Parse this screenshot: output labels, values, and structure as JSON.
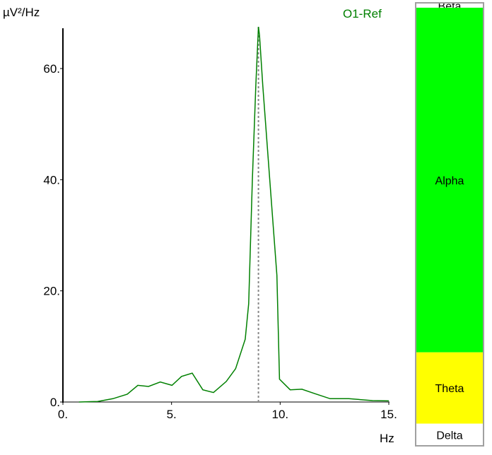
{
  "chart_data": {
    "type": "line",
    "title": "O1-Ref",
    "xlabel": "Hz",
    "ylabel": "µV²/Hz",
    "xlim": [
      0,
      15
    ],
    "ylim": [
      0,
      67.5
    ],
    "x_ticks": [
      "0.",
      "5.",
      "10.",
      "15."
    ],
    "x_tick_values": [
      0,
      5,
      10,
      15
    ],
    "y_ticks": [
      "0.",
      "20.",
      "40.",
      "60."
    ],
    "y_tick_values": [
      0,
      20,
      40,
      60
    ],
    "grid": false,
    "series": [
      {
        "name": "O1-Ref",
        "color": "#008000",
        "x": [
          0.74,
          1.6,
          2.3,
          2.96,
          3.45,
          3.94,
          4.48,
          5.02,
          5.46,
          5.95,
          6.44,
          6.93,
          7.52,
          7.95,
          8.39,
          8.55,
          8.72,
          8.88,
          9.0,
          9.05,
          9.2,
          9.52,
          9.85,
          9.97,
          10.46,
          11.0,
          11.6,
          12.3,
          13.16,
          14.25,
          15.0
        ],
        "y": [
          0.0,
          0.1,
          0.6,
          1.4,
          3.0,
          2.8,
          3.6,
          3.0,
          4.6,
          5.2,
          2.2,
          1.7,
          3.7,
          6.0,
          11.3,
          17.7,
          40,
          57,
          67.5,
          66,
          57,
          40,
          22.8,
          4.1,
          2.2,
          2.3,
          1.5,
          0.6,
          0.6,
          0.25,
          0.2
        ]
      }
    ],
    "marker_line": {
      "x": 9.0,
      "style": "dashed",
      "color": "#888888"
    }
  },
  "bands": [
    {
      "name": "Beta",
      "percent": 1.1,
      "color": "#ffffff"
    },
    {
      "name": "Alpha",
      "percent": 77.8,
      "color": "#00ff00"
    },
    {
      "name": "Theta",
      "percent": 16.1,
      "color": "#ffff00"
    },
    {
      "name": "Delta",
      "percent": 5.0,
      "color": "#ffffff"
    }
  ]
}
